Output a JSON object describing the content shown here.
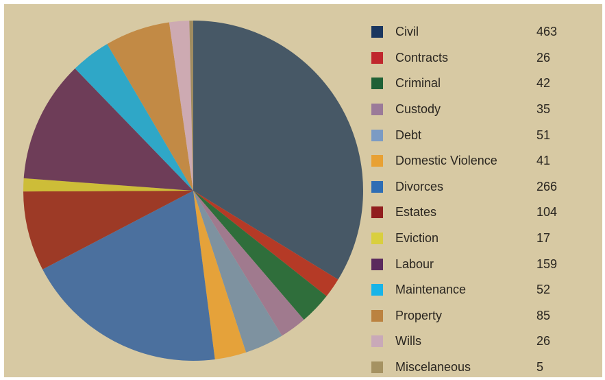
{
  "chart_data": {
    "type": "pie",
    "categories": [
      "Civil",
      "Contracts",
      "Criminal",
      "Custody",
      "Debt",
      "Domestic Violence",
      "Divorces",
      "Estates",
      "Eviction",
      "Labour",
      "Maintenance",
      "Property",
      "Wills",
      "Miscelaneous"
    ],
    "values": [
      463,
      26,
      42,
      35,
      51,
      41,
      266,
      104,
      17,
      159,
      52,
      85,
      26,
      5
    ],
    "legend_colors": [
      "#1a365f",
      "#c0272d",
      "#1f6136",
      "#9b7a99",
      "#7b9bc4",
      "#e8a134",
      "#2e6db4",
      "#911e1e",
      "#d9cf3f",
      "#5b2a5d",
      "#18b4e8",
      "#bb8240",
      "#c9a9b8",
      "#a59262"
    ],
    "slice_colors": [
      "#475866",
      "#b53a26",
      "#2f6e3b",
      "#a07a8e",
      "#7e92a0",
      "#e5a23a",
      "#4b709e",
      "#9d3a26",
      "#cdbd38",
      "#6e3d58",
      "#2fa7c7",
      "#c28a45",
      "#cdaab2",
      "#a08c60"
    ],
    "start_angle_deg": 0,
    "direction": "clockwise",
    "legend_position": "right",
    "background": "#d7c9a3"
  }
}
